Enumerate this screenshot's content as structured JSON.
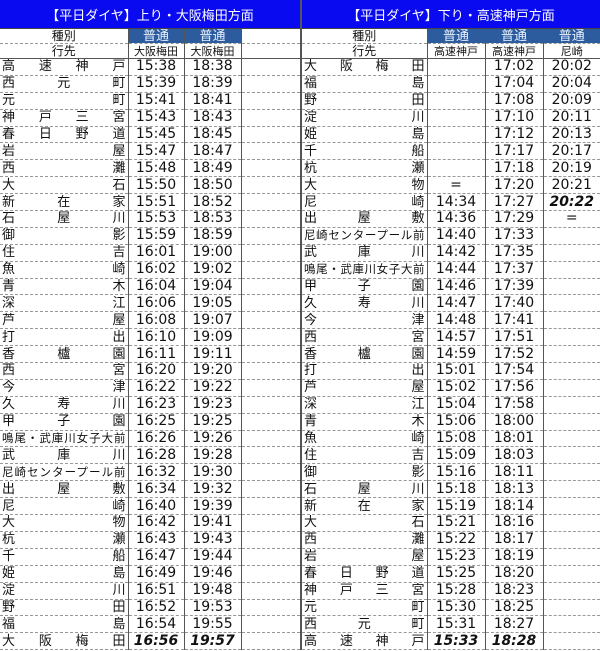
{
  "left": {
    "title": "【平日ダイヤ】上り・大阪梅田方面",
    "type_label": "種別",
    "dest_label": "行先",
    "trains": [
      {
        "type": "普通",
        "dest": "大阪梅田"
      },
      {
        "type": "普通",
        "dest": "大阪梅田"
      },
      {
        "type": "",
        "dest": ""
      }
    ],
    "rows": [
      {
        "station": "高速神戸",
        "times": [
          "15:38",
          "18:38",
          ""
        ]
      },
      {
        "station": "西元町",
        "times": [
          "15:39",
          "18:39",
          ""
        ]
      },
      {
        "station": "元町",
        "times": [
          "15:41",
          "18:41",
          ""
        ]
      },
      {
        "station": "神戸三宮",
        "times": [
          "15:43",
          "18:43",
          ""
        ]
      },
      {
        "station": "春日野道",
        "times": [
          "15:45",
          "18:45",
          ""
        ]
      },
      {
        "station": "岩屋",
        "times": [
          "15:47",
          "18:47",
          ""
        ]
      },
      {
        "station": "西灘",
        "times": [
          "15:48",
          "18:49",
          ""
        ]
      },
      {
        "station": "大石",
        "times": [
          "15:50",
          "18:50",
          ""
        ]
      },
      {
        "station": "新在家",
        "times": [
          "15:51",
          "18:52",
          ""
        ]
      },
      {
        "station": "石屋川",
        "times": [
          "15:53",
          "18:53",
          ""
        ]
      },
      {
        "station": "御影",
        "times": [
          "15:59",
          "18:59",
          ""
        ]
      },
      {
        "station": "住吉",
        "times": [
          "16:01",
          "19:00",
          ""
        ]
      },
      {
        "station": "魚崎",
        "times": [
          "16:02",
          "19:02",
          ""
        ]
      },
      {
        "station": "青木",
        "times": [
          "16:04",
          "19:04",
          ""
        ]
      },
      {
        "station": "深江",
        "times": [
          "16:06",
          "19:05",
          ""
        ]
      },
      {
        "station": "芦屋",
        "times": [
          "16:08",
          "19:07",
          ""
        ]
      },
      {
        "station": "打出",
        "times": [
          "16:10",
          "19:09",
          ""
        ]
      },
      {
        "station": "香櫨園",
        "times": [
          "16:11",
          "19:11",
          ""
        ]
      },
      {
        "station": "西宮",
        "times": [
          "16:20",
          "19:20",
          ""
        ]
      },
      {
        "station": "今津",
        "times": [
          "16:22",
          "19:22",
          ""
        ]
      },
      {
        "station": "久寿川",
        "times": [
          "16:23",
          "19:23",
          ""
        ]
      },
      {
        "station": "甲子園",
        "times": [
          "16:25",
          "19:25",
          ""
        ]
      },
      {
        "station": "鳴尾・武庫川女子大前",
        "times": [
          "16:26",
          "19:26",
          ""
        ]
      },
      {
        "station": "武庫川",
        "times": [
          "16:28",
          "19:28",
          ""
        ]
      },
      {
        "station": "尼崎センタープール前",
        "times": [
          "16:32",
          "19:30",
          ""
        ]
      },
      {
        "station": "出屋敷",
        "times": [
          "16:34",
          "19:32",
          ""
        ]
      },
      {
        "station": "尼崎",
        "times": [
          "16:40",
          "19:39",
          ""
        ]
      },
      {
        "station": "大物",
        "times": [
          "16:42",
          "19:41",
          ""
        ]
      },
      {
        "station": "杭瀬",
        "times": [
          "16:43",
          "19:43",
          ""
        ]
      },
      {
        "station": "千船",
        "times": [
          "16:47",
          "19:44",
          ""
        ]
      },
      {
        "station": "姫島",
        "times": [
          "16:49",
          "19:46",
          ""
        ]
      },
      {
        "station": "淀川",
        "times": [
          "16:51",
          "19:48",
          ""
        ]
      },
      {
        "station": "野田",
        "times": [
          "16:52",
          "19:53",
          ""
        ]
      },
      {
        "station": "福島",
        "times": [
          "16:54",
          "19:55",
          ""
        ]
      },
      {
        "station": "大阪梅田",
        "times": [
          "16:56",
          "19:57",
          ""
        ]
      }
    ]
  },
  "right": {
    "title": "【平日ダイヤ】下り・高速神戸方面",
    "type_label": "種別",
    "dest_label": "行先",
    "trains": [
      {
        "type": "普通",
        "dest": "高速神戸"
      },
      {
        "type": "普通",
        "dest": "高速神戸"
      },
      {
        "type": "普通",
        "dest": "尼崎"
      }
    ],
    "rows": [
      {
        "station": "大阪梅田",
        "times": [
          "",
          "17:02",
          "20:02"
        ]
      },
      {
        "station": "福島",
        "times": [
          "",
          "17:04",
          "20:04"
        ]
      },
      {
        "station": "野田",
        "times": [
          "",
          "17:08",
          "20:09"
        ]
      },
      {
        "station": "淀川",
        "times": [
          "",
          "17:10",
          "20:11"
        ]
      },
      {
        "station": "姫島",
        "times": [
          "",
          "17:12",
          "20:13"
        ]
      },
      {
        "station": "千船",
        "times": [
          "",
          "17:17",
          "20:17"
        ]
      },
      {
        "station": "杭瀬",
        "times": [
          "",
          "17:18",
          "20:19"
        ]
      },
      {
        "station": "大物",
        "times": [
          "=",
          "17:20",
          "20:21"
        ]
      },
      {
        "station": "尼崎",
        "times": [
          "14:34",
          "17:27",
          "20:22"
        ]
      },
      {
        "station": "出屋敷",
        "times": [
          "14:36",
          "17:29",
          "="
        ]
      },
      {
        "station": "尼崎センタープール前",
        "times": [
          "14:40",
          "17:33",
          ""
        ]
      },
      {
        "station": "武庫川",
        "times": [
          "14:42",
          "17:35",
          ""
        ]
      },
      {
        "station": "鳴尾・武庫川女子大前",
        "times": [
          "14:44",
          "17:37",
          ""
        ]
      },
      {
        "station": "甲子園",
        "times": [
          "14:46",
          "17:39",
          ""
        ]
      },
      {
        "station": "久寿川",
        "times": [
          "14:47",
          "17:40",
          ""
        ]
      },
      {
        "station": "今津",
        "times": [
          "14:48",
          "17:41",
          ""
        ]
      },
      {
        "station": "西宮",
        "times": [
          "14:57",
          "17:51",
          ""
        ]
      },
      {
        "station": "香櫨園",
        "times": [
          "14:59",
          "17:52",
          ""
        ]
      },
      {
        "station": "打出",
        "times": [
          "15:01",
          "17:54",
          ""
        ]
      },
      {
        "station": "芦屋",
        "times": [
          "15:02",
          "17:56",
          ""
        ]
      },
      {
        "station": "深江",
        "times": [
          "15:04",
          "17:58",
          ""
        ]
      },
      {
        "station": "青木",
        "times": [
          "15:06",
          "18:00",
          ""
        ]
      },
      {
        "station": "魚崎",
        "times": [
          "15:08",
          "18:01",
          ""
        ]
      },
      {
        "station": "住吉",
        "times": [
          "15:09",
          "18:03",
          ""
        ]
      },
      {
        "station": "御影",
        "times": [
          "15:16",
          "18:11",
          ""
        ]
      },
      {
        "station": "石屋川",
        "times": [
          "15:18",
          "18:13",
          ""
        ]
      },
      {
        "station": "新在家",
        "times": [
          "15:19",
          "18:14",
          ""
        ]
      },
      {
        "station": "大石",
        "times": [
          "15:21",
          "18:16",
          ""
        ]
      },
      {
        "station": "西灘",
        "times": [
          "15:22",
          "18:17",
          ""
        ]
      },
      {
        "station": "岩屋",
        "times": [
          "15:23",
          "18:19",
          ""
        ]
      },
      {
        "station": "春日野道",
        "times": [
          "15:25",
          "18:20",
          ""
        ]
      },
      {
        "station": "神戸三宮",
        "times": [
          "15:28",
          "18:23",
          ""
        ]
      },
      {
        "station": "元町",
        "times": [
          "15:30",
          "18:25",
          ""
        ]
      },
      {
        "station": "西元町",
        "times": [
          "15:31",
          "18:27",
          ""
        ]
      },
      {
        "station": "高速神戸",
        "times": [
          "15:33",
          "18:28",
          ""
        ]
      }
    ]
  },
  "colors": {
    "title_bar": "#0a0af0",
    "type_cell": "#2d5c9e"
  }
}
